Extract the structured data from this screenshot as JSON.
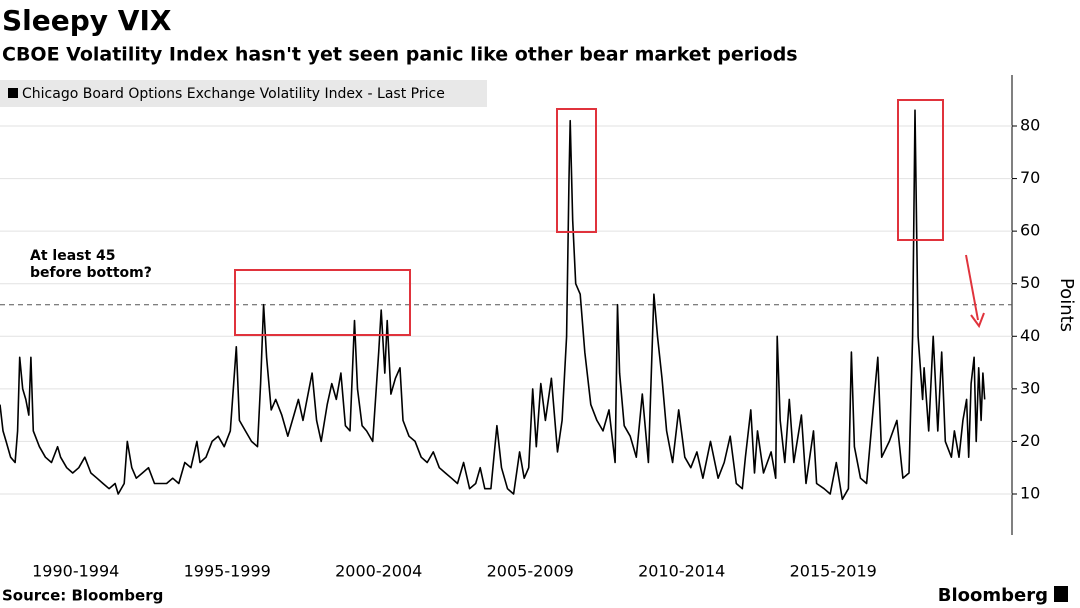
{
  "chart_data": {
    "type": "line",
    "title": "Sleepy VIX",
    "subtitle": "CBOE Volatility Index hasn't yet seen panic like other bear market periods",
    "y_axis_label": "Points",
    "source": "Source: Bloomberg",
    "logo": "Bloomberg",
    "annotation": [
      "At least 45",
      "before bottom?"
    ],
    "hline": 46,
    "grid": true,
    "xlim": [
      1990,
      2023.4
    ],
    "xticks": [
      {
        "value": 1992.5,
        "label": "1990-1994"
      },
      {
        "value": 1997.5,
        "label": "1995-1999"
      },
      {
        "value": 2002.5,
        "label": "2000-2004"
      },
      {
        "value": 2007.5,
        "label": "2005-2009"
      },
      {
        "value": 2012.5,
        "label": "2010-2014"
      },
      {
        "value": 2017.5,
        "label": "2015-2019"
      }
    ],
    "ylim": [
      2.2,
      89.7
    ],
    "yticks": [
      10,
      20,
      30,
      40,
      50,
      60,
      70,
      80
    ],
    "series": [
      {
        "name": "Chicago Board Options Exchange Volatility Index - Last Price",
        "color": "#000000",
        "x": [
          1990.0,
          1990.1,
          1990.2,
          1990.35,
          1990.5,
          1990.58,
          1990.65,
          1990.75,
          1990.85,
          1990.95,
          1991.02,
          1991.1,
          1991.3,
          1991.5,
          1991.7,
          1991.9,
          1992.0,
          1992.2,
          1992.4,
          1992.6,
          1992.8,
          1993.0,
          1993.2,
          1993.4,
          1993.6,
          1993.8,
          1993.9,
          1994.1,
          1994.2,
          1994.35,
          1994.5,
          1994.7,
          1994.9,
          1995.1,
          1995.3,
          1995.5,
          1995.7,
          1995.9,
          1996.1,
          1996.3,
          1996.5,
          1996.6,
          1996.8,
          1997.0,
          1997.2,
          1997.4,
          1997.6,
          1997.8,
          1997.9,
          1998.1,
          1998.3,
          1998.5,
          1998.6,
          1998.7,
          1998.8,
          1998.95,
          1999.1,
          1999.3,
          1999.5,
          1999.7,
          1999.85,
          2000.0,
          2000.1,
          2000.3,
          2000.45,
          2000.6,
          2000.8,
          2000.95,
          2001.1,
          2001.25,
          2001.4,
          2001.55,
          2001.7,
          2001.8,
          2001.95,
          2002.1,
          2002.3,
          2002.5,
          2002.58,
          2002.7,
          2002.78,
          2002.9,
          2003.05,
          2003.2,
          2003.3,
          2003.5,
          2003.7,
          2003.9,
          2004.1,
          2004.3,
          2004.5,
          2004.7,
          2004.9,
          2005.1,
          2005.3,
          2005.5,
          2005.7,
          2005.85,
          2006.0,
          2006.2,
          2006.4,
          2006.55,
          2006.75,
          2006.95,
          2007.15,
          2007.3,
          2007.45,
          2007.58,
          2007.7,
          2007.85,
          2008.0,
          2008.2,
          2008.4,
          2008.55,
          2008.7,
          2008.78,
          2008.82,
          2008.9,
          2009.0,
          2009.15,
          2009.3,
          2009.5,
          2009.7,
          2009.9,
          2010.1,
          2010.3,
          2010.38,
          2010.45,
          2010.6,
          2010.8,
          2011.0,
          2011.2,
          2011.4,
          2011.58,
          2011.7,
          2011.85,
          2012.0,
          2012.2,
          2012.4,
          2012.6,
          2012.8,
          2013.0,
          2013.2,
          2013.45,
          2013.7,
          2013.9,
          2014.1,
          2014.3,
          2014.5,
          2014.6,
          2014.78,
          2014.9,
          2015.0,
          2015.2,
          2015.45,
          2015.6,
          2015.65,
          2015.75,
          2015.9,
          2016.05,
          2016.2,
          2016.45,
          2016.6,
          2016.85,
          2016.95,
          2017.2,
          2017.4,
          2017.6,
          2017.8,
          2018.0,
          2018.1,
          2018.2,
          2018.4,
          2018.6,
          2018.8,
          2018.97,
          2019.1,
          2019.35,
          2019.6,
          2019.8,
          2020.0,
          2020.12,
          2020.2,
          2020.3,
          2020.45,
          2020.5,
          2020.65,
          2020.8,
          2020.95,
          2021.08,
          2021.2,
          2021.4,
          2021.5,
          2021.65,
          2021.78,
          2021.9,
          2021.97,
          2022.05,
          2022.15,
          2022.22,
          2022.3,
          2022.38,
          2022.44,
          2022.5
        ],
        "values": [
          27,
          22,
          20,
          17,
          16,
          22,
          36,
          30,
          28,
          25,
          36,
          22,
          19,
          17,
          16,
          19,
          17,
          15,
          14,
          15,
          17,
          14,
          13,
          12,
          11,
          12,
          10,
          12,
          20,
          15,
          13,
          14,
          15,
          12,
          12,
          12,
          13,
          12,
          16,
          15,
          20,
          16,
          17,
          20,
          21,
          19,
          22,
          38,
          24,
          22,
          20,
          19,
          31,
          46,
          36,
          26,
          28,
          25,
          21,
          25,
          28,
          24,
          27,
          33,
          24,
          20,
          27,
          31,
          28,
          33,
          23,
          22,
          43,
          30,
          23,
          22,
          20,
          37,
          45,
          33,
          43,
          29,
          32,
          34,
          24,
          21,
          20,
          17,
          16,
          18,
          15,
          14,
          13,
          12,
          16,
          11,
          12,
          15,
          11,
          11,
          23,
          15,
          11,
          10,
          18,
          13,
          15,
          30,
          19,
          31,
          24,
          32,
          18,
          24,
          40,
          70,
          81,
          62,
          50,
          48,
          37,
          27,
          24,
          22,
          26,
          16,
          46,
          33,
          23,
          21,
          17,
          29,
          16,
          48,
          40,
          32,
          22,
          16,
          26,
          17,
          15,
          18,
          13,
          20,
          13,
          16,
          21,
          12,
          11,
          17,
          26,
          14,
          22,
          14,
          18,
          13,
          40,
          24,
          16,
          28,
          16,
          25,
          12,
          22,
          12,
          11,
          10,
          16,
          9,
          11,
          37,
          19,
          13,
          12,
          25,
          36,
          17,
          20,
          24,
          13,
          14,
          40,
          83,
          40,
          28,
          34,
          22,
          40,
          22,
          37,
          20,
          17,
          22,
          17,
          24,
          28,
          17,
          31,
          36,
          20,
          34,
          24,
          33,
          28
        ]
      }
    ]
  }
}
